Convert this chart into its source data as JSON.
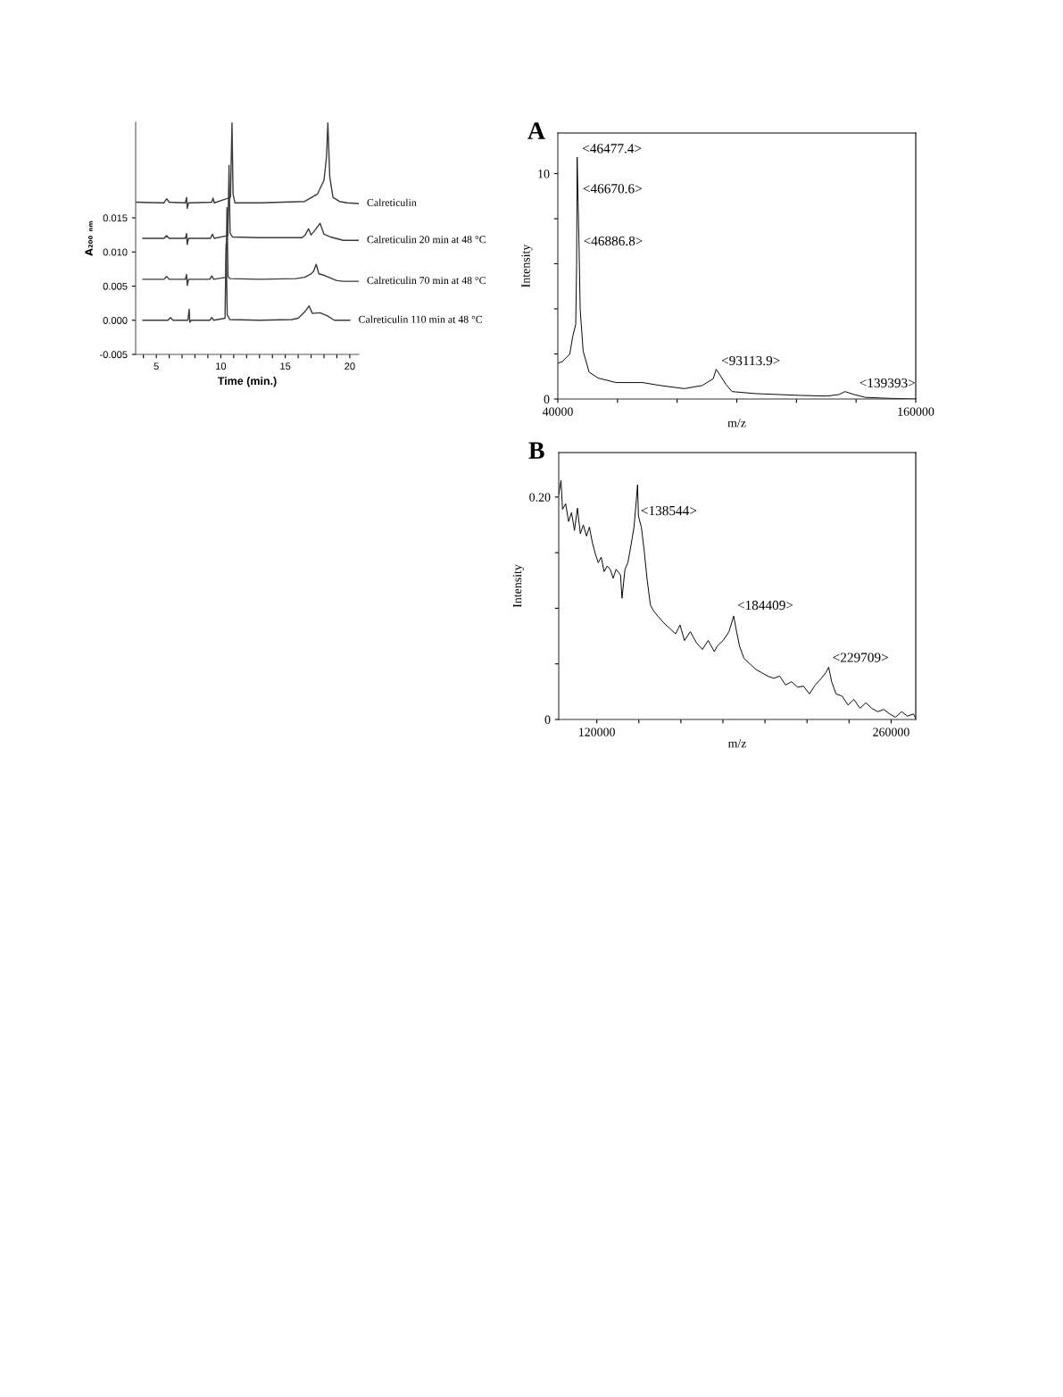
{
  "chart_data": [
    {
      "type": "line",
      "xlabel": "Time (min.)",
      "ylabel": "A₂₀₀ ₙₘ",
      "xlim": [
        3.4,
        20.7
      ],
      "ylim": [
        -0.005,
        0.029
      ],
      "xticks": [
        {
          "value": 4,
          "label": null
        },
        5,
        {
          "value": 6,
          "label": null
        },
        {
          "value": 7,
          "label": null
        },
        {
          "value": 8,
          "label": null
        },
        {
          "value": 9,
          "label": null
        },
        10,
        {
          "value": 11,
          "label": null
        },
        {
          "value": 12,
          "label": null
        },
        {
          "value": 13,
          "label": null
        },
        {
          "value": 14,
          "label": null
        },
        15,
        {
          "value": 16,
          "label": null
        },
        {
          "value": 17,
          "label": null
        },
        {
          "value": 18,
          "label": null
        },
        {
          "value": 19,
          "label": null
        },
        20
      ],
      "yticks": [
        {
          "value": -0.005,
          "label": "-0.005"
        },
        {
          "value": 0,
          "label": "0.000"
        },
        {
          "value": 0.005,
          "label": "0.005"
        },
        {
          "value": 0.01,
          "label": "0.010"
        },
        {
          "value": 0.015,
          "label": "0.015"
        }
      ],
      "series": [
        {
          "name": "Calreticulin",
          "color": "#3a3a3a",
          "x": [
            3.47,
            5.6,
            5.8,
            6.0,
            7.25,
            7.35,
            7.4,
            7.5,
            9.3,
            9.4,
            9.5,
            10.75,
            10.87,
            10.95,
            11.1,
            13,
            16.5,
            17.5,
            18.0,
            18.2,
            18.3,
            18.45,
            18.7,
            19.2,
            19.8,
            20.65
          ],
          "values": [
            0.0173,
            0.0172,
            0.0178,
            0.0173,
            0.0172,
            0.018,
            0.0164,
            0.0172,
            0.0173,
            0.0179,
            0.0172,
            0.018,
            0.0289,
            0.0185,
            0.0172,
            0.0172,
            0.0174,
            0.0185,
            0.0205,
            0.024,
            0.0289,
            0.021,
            0.018,
            0.0174,
            0.0172,
            0.0171
          ]
        },
        {
          "name": "Calreticulin 20 min at 48 °C",
          "color": "#3a3a3a",
          "x": [
            3.96,
            5.6,
            5.8,
            6.0,
            7.25,
            7.35,
            7.4,
            7.5,
            9.2,
            9.35,
            9.5,
            10.55,
            10.64,
            10.72,
            10.9,
            13,
            16.3,
            16.55,
            16.8,
            17.0,
            17.3,
            17.7,
            18.0,
            18.5,
            19.5,
            20.65
          ],
          "values": [
            0.012,
            0.012,
            0.0124,
            0.012,
            0.012,
            0.0127,
            0.0111,
            0.012,
            0.012,
            0.0126,
            0.012,
            0.0124,
            0.0227,
            0.0128,
            0.0122,
            0.0121,
            0.0121,
            0.0125,
            0.0134,
            0.0125,
            0.0132,
            0.0142,
            0.0126,
            0.0122,
            0.0117,
            0.0117
          ]
        },
        {
          "name": "Calreticulin 70 min at 48 °C",
          "color": "#3a3a3a",
          "x": [
            3.96,
            5.6,
            5.8,
            6.0,
            7.25,
            7.35,
            7.4,
            7.5,
            9.15,
            9.3,
            9.45,
            10.4,
            10.48,
            10.56,
            10.7,
            13,
            15.8,
            16.5,
            17.0,
            17.2,
            17.4,
            17.6,
            18.0,
            18.5,
            19.0,
            19.5,
            20.65
          ],
          "values": [
            0.006,
            0.006,
            0.0064,
            0.006,
            0.006,
            0.0067,
            0.0051,
            0.006,
            0.006,
            0.0065,
            0.006,
            0.0063,
            0.0165,
            0.0064,
            0.0061,
            0.006,
            0.0061,
            0.0063,
            0.0068,
            0.0072,
            0.0082,
            0.0068,
            0.0066,
            0.0062,
            0.0058,
            0.0057,
            0.0057
          ]
        },
        {
          "name": "Calreticulin 110 min at 48 °C",
          "color": "#3a3a3a",
          "x": [
            3.96,
            5.9,
            6.1,
            6.3,
            7.45,
            7.55,
            7.6,
            7.7,
            9.15,
            9.3,
            9.45,
            10.33,
            10.41,
            10.5,
            10.7,
            13,
            15.5,
            16.0,
            16.5,
            16.85,
            17.1,
            17.7,
            18.3,
            18.8,
            20.0
          ],
          "values": [
            0,
            0,
            0.0004,
            0,
            0,
            0.0016,
            -0.0003,
            0,
            0,
            0.0004,
            0,
            0.0003,
            0.0112,
            0.0008,
            0.0001,
            0,
            0.0001,
            0.0003,
            0.0012,
            0.0021,
            0.001,
            0.0011,
            0.0006,
            0,
            0
          ]
        }
      ]
    },
    {
      "type": "line",
      "title": "A",
      "xlabel": "m/z",
      "ylabel": "Intensity",
      "xlim": [
        40000,
        160000
      ],
      "ylim": [
        0,
        11.8
      ],
      "xticks": [
        40000,
        {
          "value": 60000,
          "label": null
        },
        {
          "value": 80000,
          "label": null
        },
        {
          "value": 100000,
          "label": null
        },
        {
          "value": 120000,
          "label": null
        },
        {
          "value": 140000,
          "label": null
        },
        160000
      ],
      "yticks": [
        0,
        {
          "value": 2,
          "label": null
        },
        {
          "value": 4,
          "label": null
        },
        {
          "value": 6,
          "label": null
        },
        {
          "value": 8,
          "label": null
        },
        10
      ],
      "series": [
        {
          "color": "#000000",
          "x": [
            40000,
            41500,
            44000,
            45000,
            46000,
            46300,
            46480,
            46800,
            47100,
            47500,
            48500,
            50500,
            53500,
            59500,
            68400,
            74400,
            82400,
            88400,
            92100,
            93100,
            94400,
            96300,
            98400,
            106300,
            121300,
            130300,
            134300,
            136300,
            139300,
            143200,
            151200,
            160000
          ],
          "values": [
            1.59,
            1.66,
            1.99,
            2.78,
            3.31,
            5.96,
            10.73,
            8.74,
            6.89,
            3.97,
            2.12,
            1.19,
            0.93,
            0.73,
            0.73,
            0.6,
            0.46,
            0.6,
            0.9,
            1.32,
            1.06,
            0.66,
            0.33,
            0.24,
            0.16,
            0.13,
            0.2,
            0.33,
            0.2,
            0.07,
            0.03,
            0
          ]
        }
      ],
      "annotations": [
        {
          "text": "<46477.4>",
          "x": 46477.4,
          "y": 10.73
        },
        {
          "text": "<46670.6>",
          "x": 46670.6,
          "y": 8.95
        },
        {
          "text": "<46886.8>",
          "x": 46886.8,
          "y": 6.63
        },
        {
          "text": "<93113.9>",
          "x": 93113.9,
          "y": 1.32
        },
        {
          "text": "<139393>",
          "x": 139393,
          "y": 0.33
        }
      ]
    },
    {
      "type": "line",
      "title": "B",
      "xlabel": "m/z",
      "ylabel": "Intensity",
      "xlim": [
        101900,
        271700
      ],
      "ylim": [
        0,
        0.24
      ],
      "xticks": [
        120000,
        {
          "value": 140000,
          "label": null
        },
        {
          "value": 160000,
          "label": null
        },
        {
          "value": 180000,
          "label": null
        },
        {
          "value": 200000,
          "label": null
        },
        {
          "value": 220000,
          "label": null
        },
        {
          "value": 240000,
          "label": null
        },
        260000
      ],
      "yticks": [
        0,
        {
          "value": 0.05,
          "label": null
        },
        {
          "value": 0.1,
          "label": null
        },
        {
          "value": 0.15,
          "label": null
        },
        {
          "value": 0.2,
          "label": "0.20"
        }
      ],
      "series": [
        {
          "color": "#000000",
          "x": [
            101900,
            103000,
            103700,
            105200,
            106600,
            108000,
            109400,
            110800,
            112200,
            113600,
            115100,
            116500,
            117900,
            119300,
            120700,
            122100,
            123500,
            125000,
            126400,
            127800,
            129200,
            131300,
            132000,
            133400,
            134800,
            136300,
            137700,
            138800,
            139400,
            139800,
            141200,
            142600,
            144000,
            145500,
            146900,
            149000,
            151800,
            154600,
            157500,
            159600,
            161700,
            164500,
            167400,
            170200,
            173000,
            175900,
            177300,
            180100,
            182900,
            185100,
            186500,
            187900,
            190000,
            192800,
            195700,
            198500,
            201300,
            204100,
            207000,
            209800,
            212600,
            215500,
            218300,
            221100,
            223900,
            226800,
            228900,
            230300,
            231700,
            233800,
            236700,
            239500,
            242300,
            245200,
            248000,
            250800,
            253600,
            256500,
            259300,
            262100,
            265000,
            267800,
            270600,
            271700
          ],
          "values": [
            0.202,
            0.215,
            0.189,
            0.194,
            0.178,
            0.186,
            0.17,
            0.19,
            0.167,
            0.175,
            0.165,
            0.173,
            0.159,
            0.149,
            0.141,
            0.146,
            0.133,
            0.138,
            0.135,
            0.127,
            0.135,
            0.13,
            0.109,
            0.135,
            0.141,
            0.157,
            0.173,
            0.197,
            0.211,
            0.183,
            0.173,
            0.151,
            0.125,
            0.103,
            0.098,
            0.093,
            0.087,
            0.082,
            0.077,
            0.085,
            0.071,
            0.079,
            0.069,
            0.063,
            0.071,
            0.061,
            0.066,
            0.071,
            0.079,
            0.093,
            0.079,
            0.066,
            0.055,
            0.05,
            0.045,
            0.042,
            0.039,
            0.037,
            0.039,
            0.031,
            0.034,
            0.029,
            0.03,
            0.023,
            0.031,
            0.037,
            0.042,
            0.047,
            0.034,
            0.023,
            0.021,
            0.013,
            0.018,
            0.01,
            0.015,
            0.01,
            0.007,
            0.009,
            0.005,
            0.002,
            0.007,
            0.003,
            0.005,
            0.001
          ]
        }
      ],
      "annotations": [
        {
          "text": "<138544>",
          "x": 138544,
          "y": 0.18
        },
        {
          "text": "<184409>",
          "x": 184409,
          "y": 0.095
        },
        {
          "text": "<229709>",
          "x": 229709,
          "y": 0.048
        }
      ]
    }
  ]
}
